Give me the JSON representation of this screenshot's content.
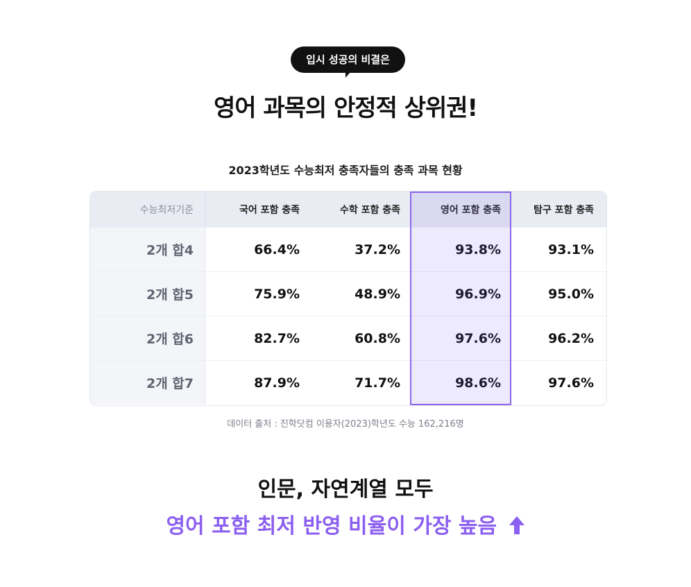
{
  "header": {
    "bubble_text": "입시 성공의 비결은",
    "headline": "영어 과목의 안정적 상위권!"
  },
  "table": {
    "title": "2023학년도 수능최저 충족자들의 충족 과목 현황",
    "columns": [
      "수능최저기준",
      "국어 포함 충족",
      "수학 포함 충족",
      "영어 포함 충족",
      "탐구 포함 충족"
    ],
    "rows": [
      {
        "label": "2개 합4",
        "values": [
          "66.4%",
          "37.2%",
          "93.8%",
          "93.1%"
        ]
      },
      {
        "label": "2개 합5",
        "values": [
          "75.9%",
          "48.9%",
          "96.9%",
          "95.0%"
        ]
      },
      {
        "label": "2개 합6",
        "values": [
          "82.7%",
          "60.8%",
          "97.6%",
          "96.2%"
        ]
      },
      {
        "label": "2개 합7",
        "values": [
          "87.9%",
          "71.7%",
          "98.6%",
          "97.6%"
        ]
      }
    ],
    "highlight_color": "#8b67ea"
  },
  "source": "데이터 출처 : 진학닷컴 이용자(2023)학년도 수능 162,216명",
  "footer": {
    "line1": "인문, 자연계열 모두",
    "line2": "영어 포함 최저 반영 비율이 가장 높음",
    "accent_color": "#8b5ff0",
    "icon": "up-arrow-icon"
  }
}
